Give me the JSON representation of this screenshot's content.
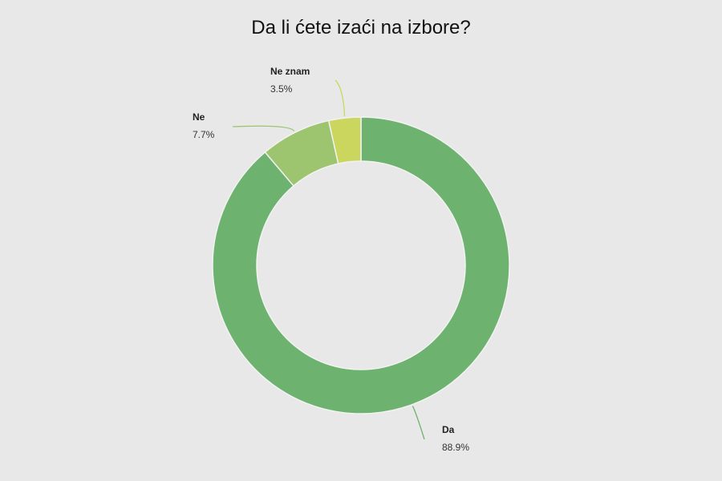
{
  "chart_data": {
    "type": "pie",
    "variant": "donut",
    "title": "Da li ćete izaći na izbore?",
    "slices": [
      {
        "label": "Da",
        "value": 88.9,
        "value_label": "88.9%",
        "color": "#6db26f",
        "label_side": "bottom-right"
      },
      {
        "label": "Ne",
        "value": 7.7,
        "value_label": "7.7%",
        "color": "#9dc46e",
        "label_side": "top-left"
      },
      {
        "label": "Ne znam",
        "value": 3.5,
        "value_label": "3.5%",
        "color": "#cbd65f",
        "label_side": "top"
      }
    ],
    "start_angle": "12 o'clock",
    "direction": "clockwise",
    "legend": "none",
    "background": "#e8e8e8"
  }
}
